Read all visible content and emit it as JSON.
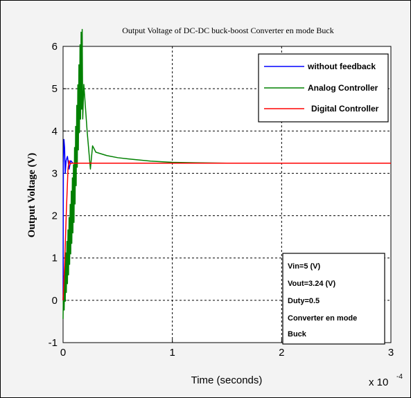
{
  "chart_data": {
    "type": "line",
    "title": "Output Voltage of DC-DC buck-boost Converter en mode Buck",
    "xlabel": "Time (seconds)",
    "ylabel": "Output Voltage (V)",
    "x_multiplier_label": "x 10",
    "x_multiplier_exponent": "-4",
    "xlim": [
      0,
      3
    ],
    "ylim": [
      -1,
      6
    ],
    "xticks": [
      "0",
      "1",
      "2",
      "3"
    ],
    "yticks": [
      "-1",
      "0",
      "1",
      "2",
      "3",
      "4",
      "5",
      "6"
    ],
    "grid": true,
    "legend_position": "top-right",
    "series": [
      {
        "name": "without feedback",
        "color": "#0000ff",
        "points": [
          [
            0,
            0
          ],
          [
            0.003,
            3.2
          ],
          [
            0.008,
            3.8
          ],
          [
            0.014,
            3.6
          ],
          [
            0.02,
            3.0
          ],
          [
            0.028,
            3.3
          ],
          [
            0.04,
            3.4
          ],
          [
            0.055,
            3.1
          ],
          [
            0.07,
            3.3
          ],
          [
            0.09,
            3.24
          ],
          [
            0.2,
            3.24
          ],
          [
            3,
            3.24
          ]
        ]
      },
      {
        "name": "Analog Controller",
        "color": "#008000",
        "points": [
          [
            0,
            0
          ],
          [
            0.05,
            1.2
          ],
          [
            0.1,
            2.6
          ],
          [
            0.13,
            4.0
          ],
          [
            0.155,
            5.1
          ],
          [
            0.17,
            5.5
          ],
          [
            0.19,
            5.1
          ],
          [
            0.22,
            4.0
          ],
          [
            0.25,
            3.1
          ],
          [
            0.27,
            3.65
          ],
          [
            0.3,
            3.5
          ],
          [
            0.4,
            3.42
          ],
          [
            0.5,
            3.37
          ],
          [
            0.6,
            3.34
          ],
          [
            0.8,
            3.29
          ],
          [
            1.0,
            3.26
          ],
          [
            1.2,
            3.25
          ],
          [
            1.5,
            3.24
          ],
          [
            3,
            3.24
          ]
        ]
      },
      {
        "name": "Digital Controller",
        "color": "#ff0000",
        "points": [
          [
            0,
            0
          ],
          [
            0.015,
            0.9
          ],
          [
            0.03,
            2.1
          ],
          [
            0.045,
            3.1
          ],
          [
            0.055,
            3.3
          ],
          [
            0.065,
            3.22
          ],
          [
            0.08,
            3.24
          ],
          [
            0.2,
            3.24
          ],
          [
            3,
            3.24
          ]
        ]
      }
    ],
    "annotation_lines": [
      "Vin=5 (V)",
      "Vout=3.24 (V)",
      "Duty=0.5",
      "Converter en mode",
      "Buck"
    ]
  }
}
